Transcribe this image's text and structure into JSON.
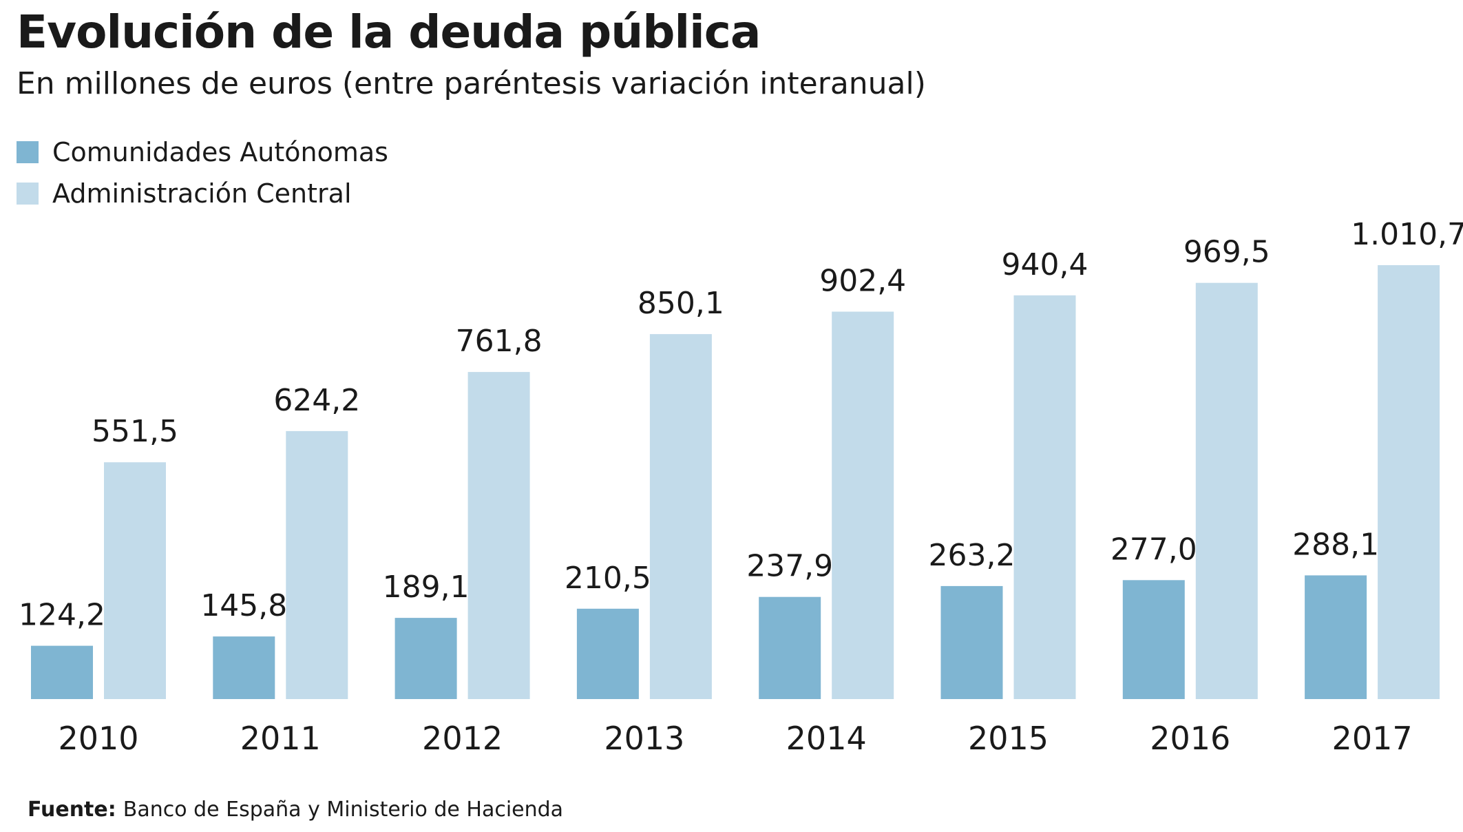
{
  "title": "Evolución de la deuda pública",
  "subtitle": "En millones de euros (entre paréntesis variación interanual)",
  "source": {
    "label": "Fuente:",
    "text": "Banco de España y Ministerio de Hacienda"
  },
  "colors": {
    "ccaa": "#7fb5d2",
    "central": "#c2dbea",
    "text": "#1a1a1a"
  },
  "chart_data": {
    "type": "bar",
    "title": "Evolución de la deuda pública",
    "subtitle": "En millones de euros (entre paréntesis variación interanual)",
    "xlabel": "",
    "ylabel": "",
    "categories": [
      "2010",
      "2011",
      "2012",
      "2013",
      "2014",
      "2015",
      "2016",
      "2017"
    ],
    "series": [
      {
        "name": "Comunidades Autónomas",
        "values": [
          124.2,
          145.8,
          189.1,
          210.5,
          237.9,
          263.2,
          277.0,
          288.1
        ],
        "labels": [
          "124,2",
          "145,8",
          "189,1",
          "210,5",
          "237,9",
          "263,2",
          "277,0",
          "288,1"
        ]
      },
      {
        "name": "Administración Central",
        "values": [
          551.5,
          624.2,
          761.8,
          850.1,
          902.4,
          940.4,
          969.5,
          1010.7
        ],
        "labels": [
          "551,5",
          "624,2",
          "761,8",
          "850,1",
          "902,4",
          "940,4",
          "969,5",
          "1.010,7"
        ]
      }
    ],
    "ylim": [
      0,
      1010.7
    ],
    "grid": false,
    "legend_position": "top-left"
  }
}
